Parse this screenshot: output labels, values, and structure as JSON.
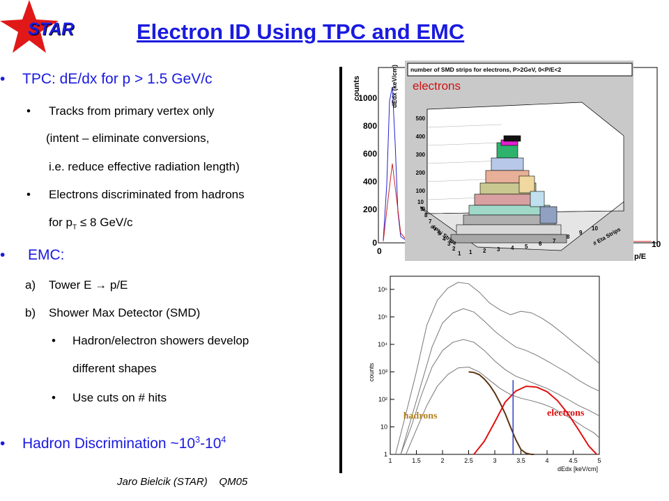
{
  "logo": {
    "text": "STAR"
  },
  "title": "Electron ID Using TPC and EMC",
  "bullets": {
    "tpc": "TPC: dE/dx for p > 1.5 GeV/c",
    "tpc_sub1": "Tracks from primary vertex only",
    "tpc_sub1_cont1": "(intent – eliminate conversions,",
    "tpc_sub1_cont2": "i.e. reduce effective radiation length)",
    "tpc_sub2": "Electrons discriminated from hadrons",
    "tpc_sub2_cont_pre": "for p",
    "tpc_sub2_cont_sub": "T",
    "tpc_sub2_cont_post": " ≤ 8 GeV/c",
    "emc": "EMC:",
    "emc_a_marker": "a)",
    "emc_a": "Tower E → p/E",
    "emc_b_marker": "b)",
    "emc_b": "Shower Max Detector (SMD)",
    "emc_b_sub1": "Hadron/electron showers develop",
    "emc_b_sub1_cont": "different shapes",
    "emc_b_sub2": "Use cuts on # hits",
    "hadron_pre": "Hadron Discrimination ~10",
    "hadron_sup1": "3",
    "hadron_mid": "-10",
    "hadron_sup2": "4"
  },
  "footer": "Jaro Bielcik (STAR)    QM05",
  "plot_top": {
    "inset_title": "number of SMD strips for electrons, P>2GeV, 0<P/E<2",
    "inset_label": "electrons",
    "z_ticks": [
      "500",
      "400",
      "300",
      "200",
      "100",
      "0"
    ],
    "phi_ticks": [
      "10",
      "9",
      "8",
      "7",
      "6",
      "5",
      "4",
      "3",
      "2",
      "1"
    ],
    "phi_label": "# Phi Strips",
    "eta_ticks": [
      "1",
      "2",
      "3",
      "4",
      "5",
      "6",
      "7",
      "8",
      "9",
      "10"
    ],
    "eta_label": "# Eta Strips",
    "bg_y_ticks": [
      "1000",
      "800",
      "600",
      "400",
      "200",
      "0"
    ],
    "bg_y_label": "counts",
    "bg_x_ticks": [
      "0",
      "10"
    ],
    "bg_x_label": "p/E",
    "bg_dedx_label": "dEdx (keV/cm)"
  },
  "chart_data": {
    "type": "line",
    "xlabel": "dEdx [keV/cm]",
    "ylabel": "counts",
    "xlim": [
      1,
      5
    ],
    "ylim": [
      1,
      3000000
    ],
    "log_y": true,
    "x_ticks": [
      "1",
      "1.5",
      "2",
      "2.5",
      "3",
      "3.5",
      "4",
      "4.5",
      "5"
    ],
    "y_ticks": [
      "10⁶",
      "10⁵",
      "10⁴",
      "10³",
      "10²",
      "10",
      "1"
    ],
    "annotations": [
      "hadrons",
      "electrons"
    ],
    "cut_x": 3.35,
    "series": [
      {
        "color": "#777777",
        "x": [
          1.1,
          1.3,
          1.5,
          1.7,
          1.9,
          2.1,
          2.3,
          2.5,
          2.7,
          2.9,
          3.1,
          3.3,
          3.5,
          3.7,
          3.9,
          4.1,
          4.3,
          4.5,
          4.7,
          4.9,
          5.0
        ],
        "values": [
          1,
          30,
          1000,
          50000,
          400000,
          1100000,
          1800000,
          1600000,
          800000,
          320000,
          180000,
          120000,
          160000,
          140000,
          90000,
          50000,
          25000,
          12000,
          6000,
          3000,
          2000
        ]
      },
      {
        "color": "#777777",
        "x": [
          1.2,
          1.4,
          1.6,
          1.8,
          2.0,
          2.2,
          2.4,
          2.6,
          2.8,
          3.0,
          3.2,
          3.4,
          3.6,
          3.8,
          4.0,
          4.2,
          4.4,
          4.6,
          4.8,
          5.0
        ],
        "values": [
          1,
          20,
          400,
          8000,
          60000,
          140000,
          200000,
          150000,
          70000,
          30000,
          15000,
          8000,
          6000,
          4000,
          2500,
          1500,
          900,
          500,
          300,
          200
        ]
      },
      {
        "color": "#777777",
        "x": [
          1.2,
          1.4,
          1.6,
          1.8,
          2.0,
          2.2,
          2.4,
          2.6,
          2.8,
          3.0,
          3.2,
          3.4,
          3.6,
          3.8,
          4.0,
          4.2,
          4.4,
          4.6,
          4.8,
          5.0
        ],
        "values": [
          1,
          10,
          150,
          1500,
          6000,
          12000,
          15000,
          12000,
          6000,
          2500,
          1200,
          700,
          500,
          350,
          250,
          160,
          100,
          60,
          40,
          25
        ]
      },
      {
        "color": "#777777",
        "x": [
          1.3,
          1.5,
          1.7,
          1.9,
          2.1,
          2.3,
          2.5,
          2.7,
          2.9,
          3.1,
          3.3,
          3.5,
          3.7,
          3.9,
          4.1,
          4.3,
          4.5,
          4.7,
          4.9,
          5.0
        ],
        "values": [
          1,
          8,
          60,
          300,
          800,
          1400,
          1500,
          1000,
          500,
          250,
          150,
          110,
          90,
          70,
          50,
          30,
          18,
          10,
          6,
          4
        ]
      },
      {
        "name": "hadrons",
        "color": "#5a3310",
        "x": [
          2.5,
          2.6,
          2.7,
          2.8,
          2.9,
          3.0,
          3.1,
          3.2,
          3.3,
          3.4,
          3.5,
          3.6,
          3.7,
          3.75
        ],
        "values": [
          1000,
          950,
          800,
          550,
          330,
          170,
          75,
          30,
          10,
          3.5,
          1.5,
          1.1,
          1,
          1
        ]
      },
      {
        "name": "electrons",
        "color": "#e01010",
        "x": [
          2.6,
          2.8,
          3.0,
          3.2,
          3.4,
          3.6,
          3.8,
          4.0,
          4.2,
          4.4,
          4.6,
          4.8,
          4.95
        ],
        "values": [
          1,
          3,
          15,
          80,
          200,
          300,
          280,
          190,
          90,
          30,
          8,
          2,
          1
        ]
      }
    ]
  }
}
